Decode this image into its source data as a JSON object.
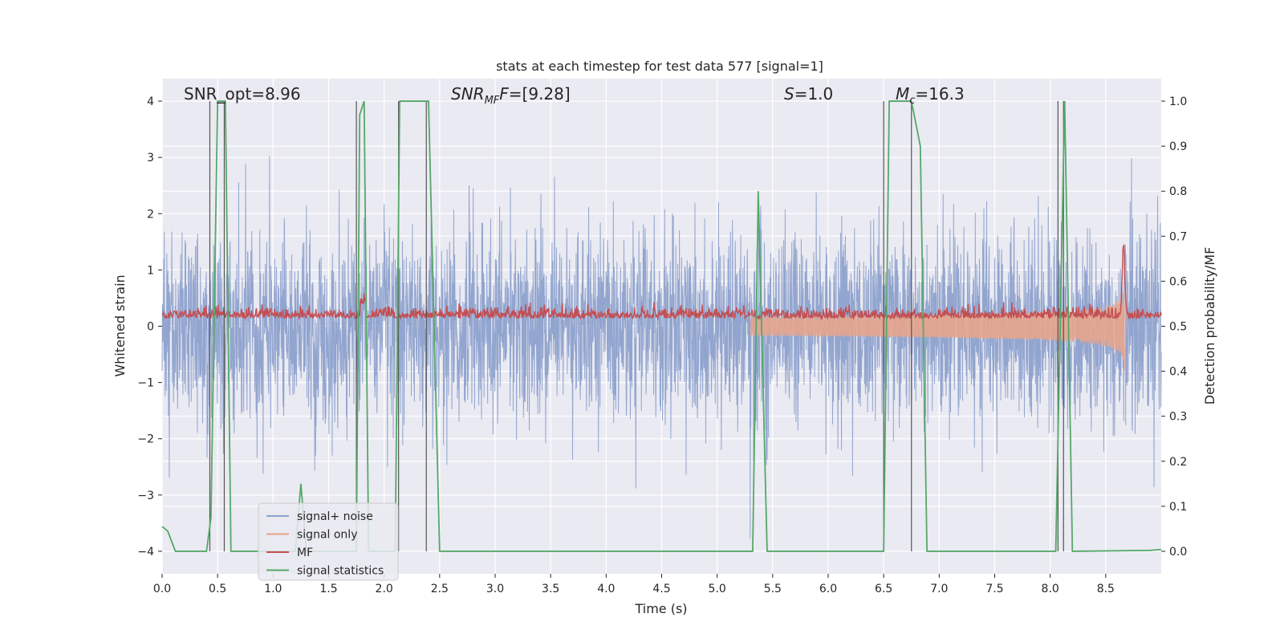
{
  "chart_data": {
    "type": "line",
    "title": "stats at each timestep for test data 577 [signal=1]",
    "xlabel": "Time (s)",
    "ylabel_left": "Whitened strain",
    "ylabel_right": "Detection probability/MF",
    "xlim": [
      0.0,
      9.0
    ],
    "ylim_left": [
      -4.4,
      4.4
    ],
    "ylim_right": [
      -0.05,
      1.05
    ],
    "xticks": [
      "0.0",
      "0.5",
      "1.0",
      "1.5",
      "2.0",
      "2.5",
      "3.0",
      "3.5",
      "4.0",
      "4.5",
      "5.0",
      "5.5",
      "6.0",
      "6.5",
      "7.0",
      "7.5",
      "8.0",
      "8.5"
    ],
    "yticks_left": [
      "4",
      "3",
      "2",
      "1",
      "0",
      "−1",
      "−2",
      "−3",
      "−4"
    ],
    "yticks_right": [
      "1.0",
      "0.9",
      "0.8",
      "0.7",
      "0.6",
      "0.5",
      "0.4",
      "0.3",
      "0.2",
      "0.1",
      "0.0"
    ],
    "grid": true,
    "legend_position": "lower-left",
    "annotations": {
      "snr_opt": "SNR_opt=8.96",
      "snr_mf_label": "SNR",
      "snr_mf_sub": "MF",
      "snr_mf_value": "=[9.28]",
      "s_label": "S",
      "s_value": "=1.0",
      "mc_label": "M",
      "mc_sub": "c",
      "mc_value": "=16.3"
    },
    "series": [
      {
        "name": "signal+ noise",
        "color": "#8da1cc",
        "kind": "noise",
        "noise_sigma": 0.85
      },
      {
        "name": "signal only",
        "color": "#e8a58c",
        "kind": "chirp",
        "t_merger": 8.68,
        "peak_amplitude": 1.55
      },
      {
        "name": "MF",
        "color": "#c44e52",
        "kind": "mf",
        "baseline": 0.14,
        "peak_time": 8.66,
        "peak_value": 1.5
      },
      {
        "name": "signal statistics",
        "color": "#55a868",
        "kind": "step",
        "x": [
          0.0,
          0.05,
          0.12,
          0.4,
          0.44,
          0.5,
          0.57,
          0.62,
          0.63,
          1.2,
          1.25,
          1.3,
          1.55,
          1.75,
          1.78,
          1.82,
          1.86,
          2.1,
          2.14,
          2.19,
          2.4,
          2.5,
          2.51,
          5.32,
          5.37,
          5.45,
          5.46,
          6.5,
          6.55,
          6.75,
          6.83,
          6.89,
          6.9,
          8.05,
          8.13,
          8.2,
          8.21,
          8.9,
          9.0
        ],
        "y": [
          0.055,
          0.045,
          0.0,
          0.0,
          0.075,
          1.0,
          1.0,
          0.0,
          0.0,
          0.0,
          0.15,
          0.0,
          0.0,
          0.0,
          0.97,
          1.0,
          0.0,
          0.0,
          1.0,
          1.0,
          1.0,
          0.0,
          0.0,
          0.0,
          0.8,
          0.0,
          0.0,
          0.0,
          1.0,
          1.0,
          0.9,
          0.0,
          0.0,
          0.0,
          1.0,
          0.0,
          0.0,
          0.002,
          0.004
        ]
      }
    ],
    "vertical_lines": [
      0.43,
      0.56,
      1.75,
      2.13,
      2.38,
      6.5,
      6.75,
      8.07,
      8.12
    ]
  }
}
